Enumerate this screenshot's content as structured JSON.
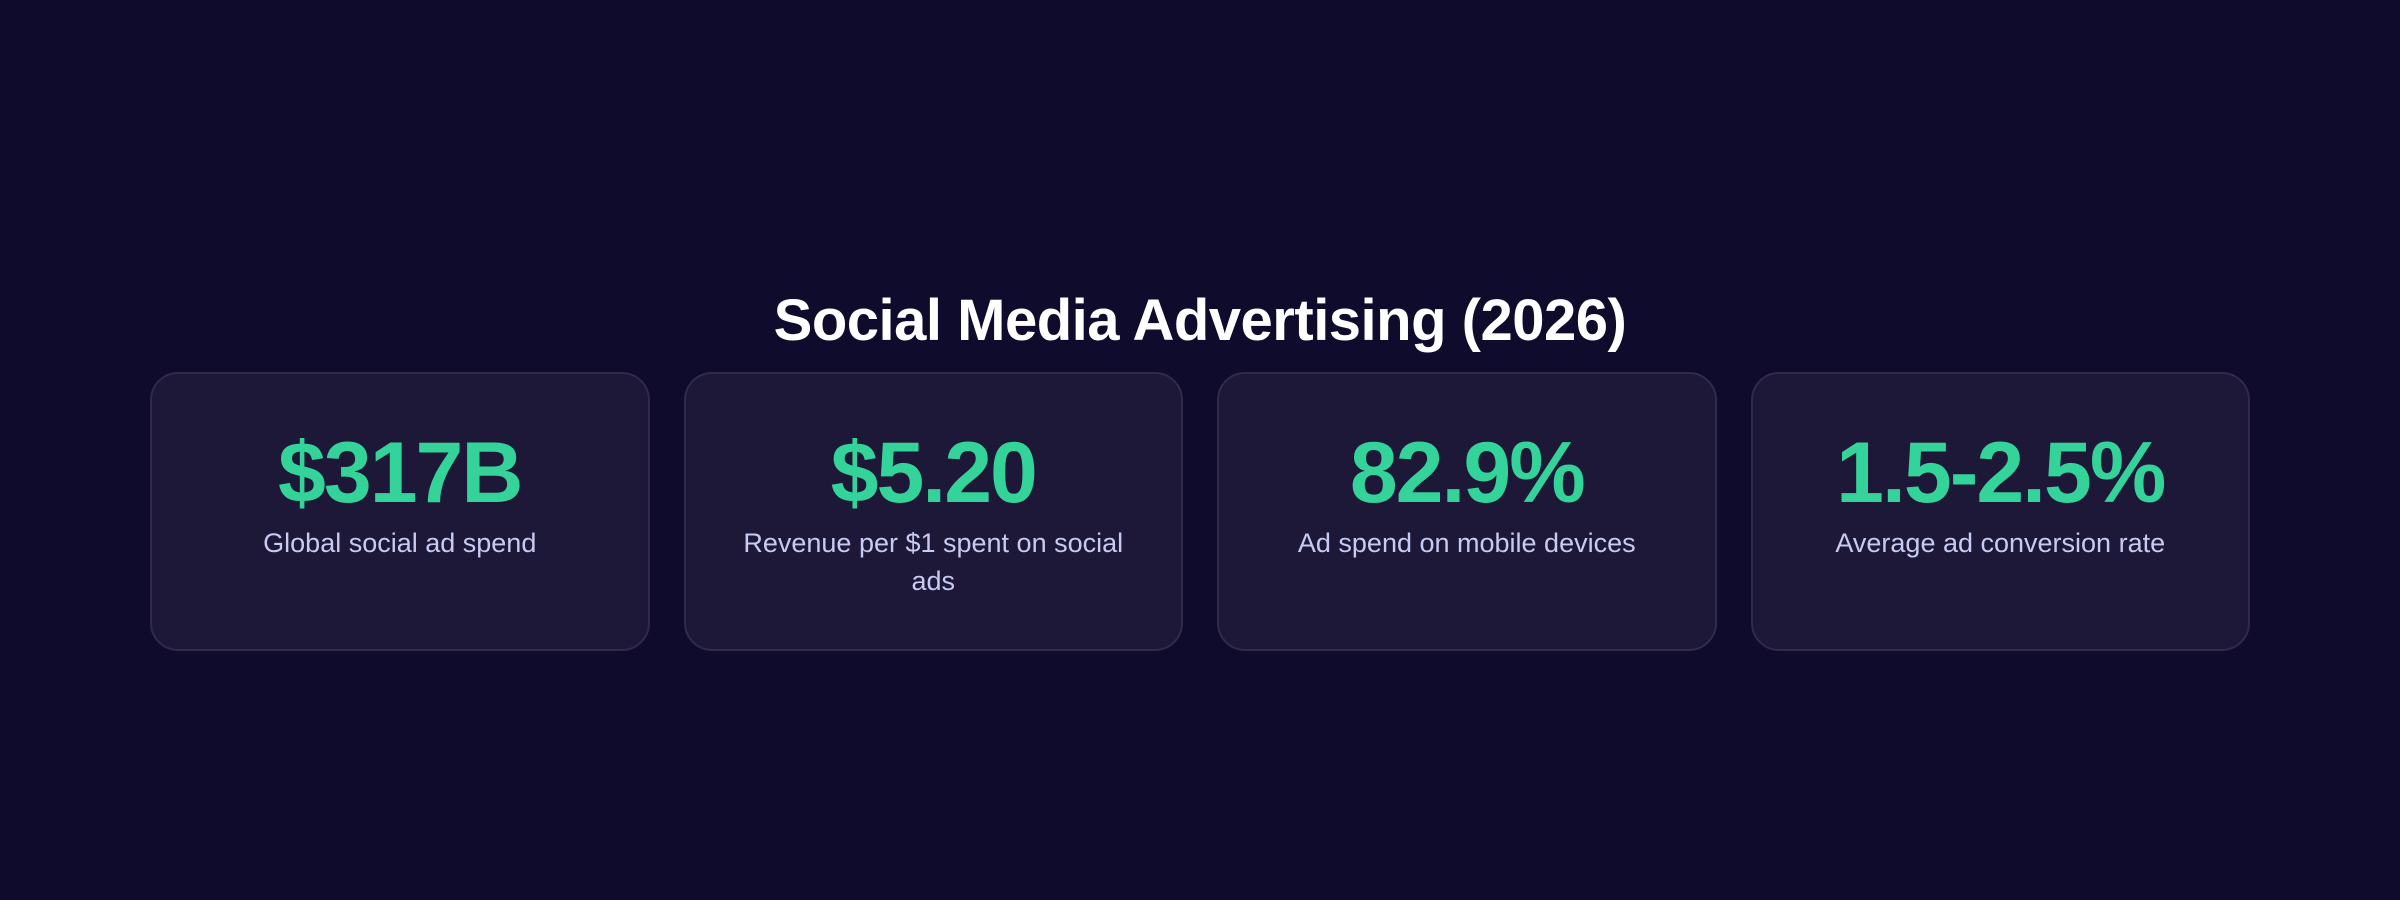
{
  "title": "Social Media Advertising (2026)",
  "colors": {
    "background": "#0f0b2d",
    "card_background": "#1d1838",
    "card_border": "#302b4d",
    "accent": "#34d399",
    "label": "#c7cbf3",
    "title": "#ffffff"
  },
  "stats": [
    {
      "value": "$317B",
      "label": "Global social ad spend"
    },
    {
      "value": "$5.20",
      "label": "Revenue per $1 spent on social ads"
    },
    {
      "value": "82.9%",
      "label": "Ad spend on mobile devices"
    },
    {
      "value": "1.5-2.5%",
      "label": "Average ad conversion rate"
    }
  ]
}
